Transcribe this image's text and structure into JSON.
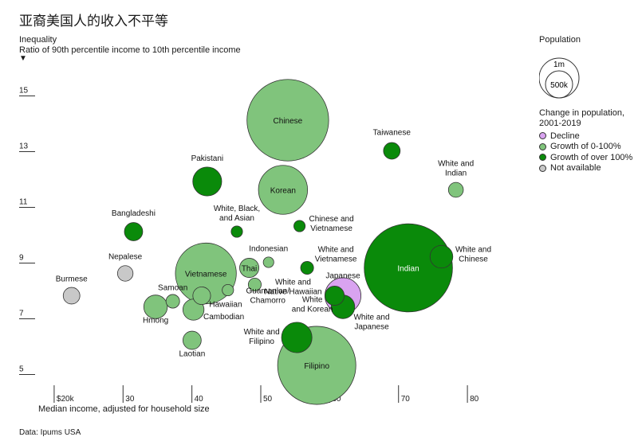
{
  "title": "亚裔美国人的收入不平等",
  "ylabel_line1": "Inequality",
  "ylabel_line2": "Ratio of 90th percentile income to 10th percentile income",
  "xlabel": "Median income, adjusted for household size",
  "source": "Data: Ipums USA",
  "legend": {
    "population_title": "Population",
    "size_1m": "1m",
    "size_500k": "500k",
    "change_title": "Change in population, 2001-2019",
    "items": [
      {
        "label": "Decline",
        "color": "#d9a3f0"
      },
      {
        "label": "Growth of 0-100%",
        "color": "#80c47c"
      },
      {
        "label": "Growth of over 100%",
        "color": "#0a8a0a"
      },
      {
        "label": "Not available",
        "color": "#c8c8c8"
      }
    ]
  },
  "colors": {
    "decline": "#d9a3f0",
    "growth_0_100": "#80c47c",
    "growth_over_100": "#0a8a0a",
    "na": "#c8c8c8"
  },
  "chart_data": {
    "type": "scatter",
    "title": "亚裔美国人的收入不平等",
    "xlabel": "Median income, adjusted for household size",
    "ylabel": "Inequality: Ratio of 90th percentile income to 10th percentile income",
    "xlim": [
      17,
      83
    ],
    "ylim": [
      4.5,
      15.5
    ],
    "x_ticks": [
      {
        "value": 20,
        "label": "$20k"
      },
      {
        "value": 30,
        "label": "30"
      },
      {
        "value": 40,
        "label": "40"
      },
      {
        "value": 50,
        "label": "50"
      },
      {
        "value": 60,
        "label": "60"
      },
      {
        "value": 70,
        "label": "70"
      },
      {
        "value": 80,
        "label": "80"
      }
    ],
    "y_ticks": [
      {
        "value": 5,
        "label": "5"
      },
      {
        "value": 7,
        "label": "7"
      },
      {
        "value": 9,
        "label": "9"
      },
      {
        "value": 11,
        "label": "11"
      },
      {
        "value": 13,
        "label": "13"
      },
      {
        "value": 15,
        "label": "15"
      }
    ],
    "points": [
      {
        "name": "Chinese",
        "x": 53.0,
        "y": 13.9,
        "pop": 3.6,
        "group": "growth_0_100"
      },
      {
        "name": "Taiwanese",
        "x": 68.1,
        "y": 12.8,
        "pop": 0.15,
        "group": "growth_over_100"
      },
      {
        "name": "Pakistani",
        "x": 41.3,
        "y": 11.7,
        "pop": 0.45,
        "group": "growth_over_100"
      },
      {
        "name": "Korean",
        "x": 52.3,
        "y": 11.4,
        "pop": 1.3,
        "group": "growth_0_100"
      },
      {
        "name": "White and Indian",
        "x": 77.4,
        "y": 11.4,
        "pop": 0.12,
        "group": "growth_0_100"
      },
      {
        "name": "Chinese and Vietnamese",
        "x": 54.7,
        "y": 10.1,
        "pop": 0.07,
        "group": "growth_over_100"
      },
      {
        "name": "White, Black, and Asian",
        "x": 45.6,
        "y": 9.9,
        "pop": 0.07,
        "group": "growth_over_100"
      },
      {
        "name": "Bangladeshi",
        "x": 30.6,
        "y": 9.9,
        "pop": 0.18,
        "group": "growth_over_100"
      },
      {
        "name": "Indian",
        "x": 70.5,
        "y": 8.6,
        "pop": 4.2,
        "group": "growth_over_100"
      },
      {
        "name": "White and Chinese",
        "x": 75.3,
        "y": 9.0,
        "pop": 0.28,
        "group": "growth_over_100"
      },
      {
        "name": "Indonesian",
        "x": 50.2,
        "y": 8.8,
        "pop": 0.06,
        "group": "growth_0_100"
      },
      {
        "name": "White and Vietnamese",
        "x": 55.8,
        "y": 8.6,
        "pop": 0.09,
        "group": "growth_over_100"
      },
      {
        "name": "Thai",
        "x": 47.4,
        "y": 8.6,
        "pop": 0.2,
        "group": "growth_0_100"
      },
      {
        "name": "Nepalese",
        "x": 29.4,
        "y": 8.4,
        "pop": 0.13,
        "group": "na"
      },
      {
        "name": "Vietnamese",
        "x": 41.1,
        "y": 8.4,
        "pop": 2.0,
        "group": "growth_0_100"
      },
      {
        "name": "White and Native Hawaiian",
        "x": 48.2,
        "y": 8.0,
        "pop": 0.09,
        "group": "growth_0_100"
      },
      {
        "name": "Japanese",
        "x": 61.0,
        "y": 7.6,
        "pop": 0.7,
        "group": "decline"
      },
      {
        "name": "Burmese",
        "x": 21.6,
        "y": 7.6,
        "pop": 0.15,
        "group": "na"
      },
      {
        "name": "Guamanian/Chamorro",
        "x": 44.3,
        "y": 7.8,
        "pop": 0.07,
        "group": "growth_0_100"
      },
      {
        "name": "Samoan",
        "x": 36.3,
        "y": 7.4,
        "pop": 0.1,
        "group": "growth_0_100"
      },
      {
        "name": "Hawaiian",
        "x": 40.5,
        "y": 7.6,
        "pop": 0.17,
        "group": "growth_0_100"
      },
      {
        "name": "White and Korean",
        "x": 59.8,
        "y": 7.6,
        "pop": 0.2,
        "group": "growth_over_100"
      },
      {
        "name": "Hmong",
        "x": 33.8,
        "y": 7.2,
        "pop": 0.3,
        "group": "growth_0_100"
      },
      {
        "name": "Cambodian",
        "x": 39.3,
        "y": 7.1,
        "pop": 0.24,
        "group": "growth_0_100"
      },
      {
        "name": "White and Japanese",
        "x": 61.0,
        "y": 7.2,
        "pop": 0.3,
        "group": "growth_over_100"
      },
      {
        "name": "White and Filipino",
        "x": 54.3,
        "y": 6.1,
        "pop": 0.5,
        "group": "growth_over_100"
      },
      {
        "name": "Laotian",
        "x": 39.1,
        "y": 6.0,
        "pop": 0.18,
        "group": "growth_0_100"
      },
      {
        "name": "Filipino",
        "x": 57.2,
        "y": 5.1,
        "pop": 3.3,
        "group": "growth_0_100"
      }
    ]
  }
}
